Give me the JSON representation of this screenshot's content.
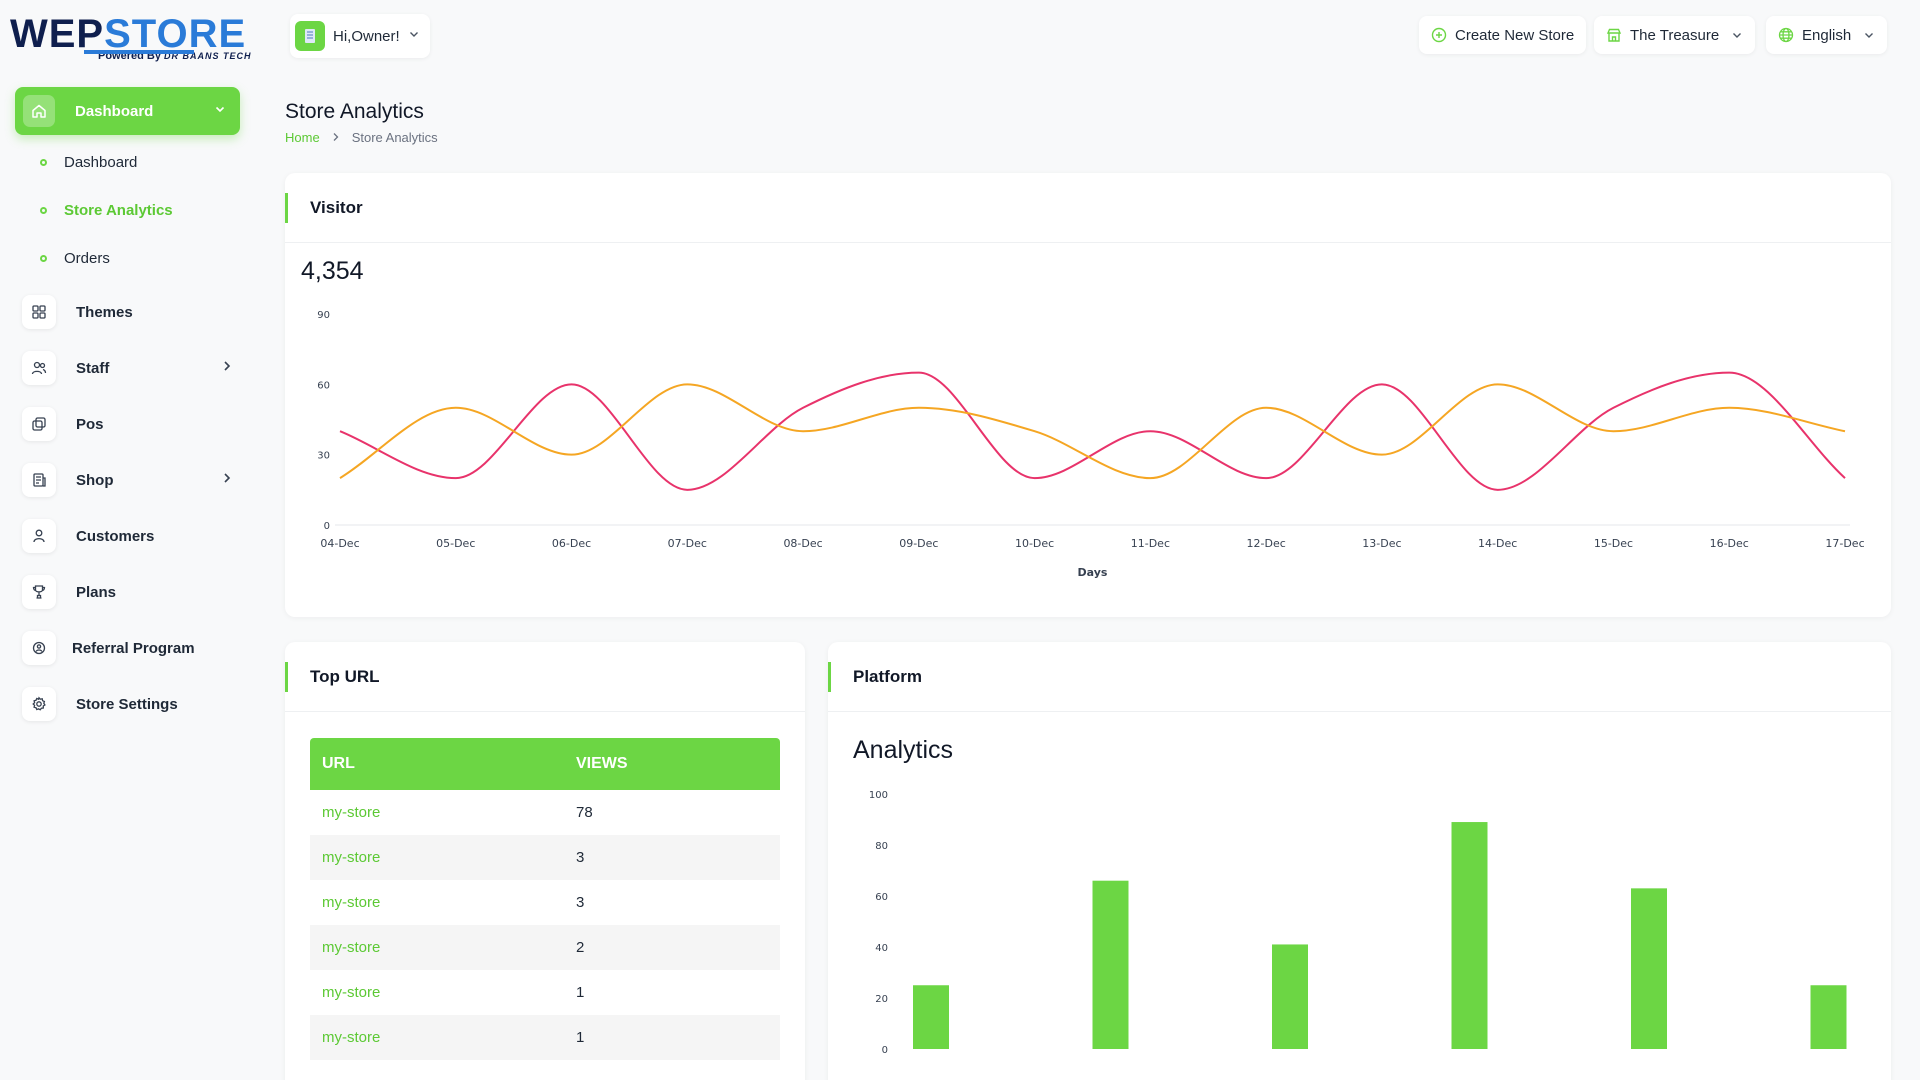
{
  "brand": {
    "name_part1": "WEP",
    "name_part2": "STORE",
    "tagline": "Powered By",
    "tagline_company": "DR BAANS TECH"
  },
  "user": {
    "greeting": "Hi,Owner!"
  },
  "topbar": {
    "create_store": "Create New Store",
    "store_name": "The Treasure",
    "language": "English"
  },
  "sidebar": {
    "dashboard_label": "Dashboard",
    "sub_items": [
      {
        "label": "Dashboard",
        "active": false
      },
      {
        "label": "Store Analytics",
        "active": true
      },
      {
        "label": "Orders",
        "active": false
      }
    ],
    "items": [
      {
        "label": "Themes",
        "icon": "grid-icon",
        "has_arrow": false
      },
      {
        "label": "Staff",
        "icon": "users-icon",
        "has_arrow": true
      },
      {
        "label": "Pos",
        "icon": "pos-icon",
        "has_arrow": false
      },
      {
        "label": "Shop",
        "icon": "shop-icon",
        "has_arrow": true
      },
      {
        "label": "Customers",
        "icon": "user-icon",
        "has_arrow": false
      },
      {
        "label": "Plans",
        "icon": "trophy-icon",
        "has_arrow": false
      },
      {
        "label": "Referral Program",
        "icon": "referral-icon",
        "has_arrow": false
      },
      {
        "label": "Store Settings",
        "icon": "settings-icon",
        "has_arrow": false
      }
    ]
  },
  "page": {
    "title": "Store Analytics",
    "breadcrumb_home": "Home",
    "breadcrumb_current": "Store Analytics"
  },
  "visitor": {
    "title": "Visitor",
    "total": "4,354"
  },
  "top_url": {
    "title": "Top URL",
    "col_url": "URL",
    "col_views": "VIEWS",
    "rows": [
      {
        "url": "my-store",
        "views": "78"
      },
      {
        "url": "my-store",
        "views": "3"
      },
      {
        "url": "my-store",
        "views": "3"
      },
      {
        "url": "my-store",
        "views": "2"
      },
      {
        "url": "my-store",
        "views": "1"
      },
      {
        "url": "my-store",
        "views": "1"
      }
    ]
  },
  "platform": {
    "title": "Platform",
    "heading": "Analytics"
  },
  "colors": {
    "accent": "#6cd644",
    "series_pink": "#e8336b",
    "series_orange": "#f5a623"
  },
  "chart_data": [
    {
      "type": "line",
      "smooth": true,
      "x": [
        "04-Dec",
        "05-Dec",
        "06-Dec",
        "07-Dec",
        "08-Dec",
        "09-Dec",
        "10-Dec",
        "11-Dec",
        "12-Dec",
        "13-Dec",
        "14-Dec",
        "15-Dec",
        "16-Dec",
        "17-Dec"
      ],
      "series": [
        {
          "color": "#e8336b",
          "values": [
            40,
            20,
            60,
            15,
            50,
            65,
            20,
            40,
            20,
            60,
            15,
            50,
            65,
            20
          ]
        },
        {
          "color": "#f5a623",
          "values": [
            20,
            50,
            30,
            60,
            40,
            50,
            40,
            20,
            50,
            30,
            60,
            40,
            50,
            40
          ]
        }
      ],
      "xlabel": "Days",
      "ylabel": "",
      "yticks": [
        0,
        30,
        60,
        90
      ],
      "ylim": [
        0,
        90
      ],
      "grid": false
    },
    {
      "type": "bar",
      "values": [
        25,
        66,
        41,
        89,
        63,
        25
      ],
      "yticks": [
        0,
        20,
        40,
        60,
        80,
        100
      ],
      "ylim": [
        0,
        100
      ],
      "color": "#6cd644",
      "grid": false
    }
  ]
}
